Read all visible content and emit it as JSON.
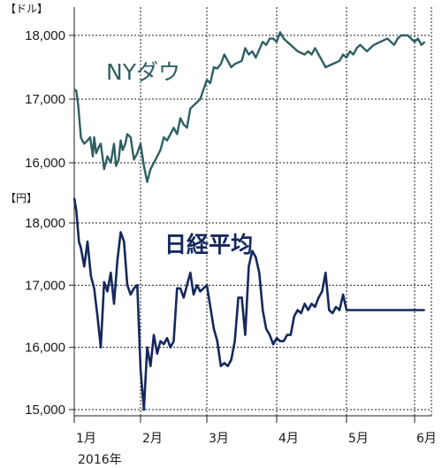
{
  "chart_data": [
    {
      "type": "line",
      "title": "NYダウ",
      "unit_label": "【ドル】",
      "color": "#2e5f63",
      "ylim": [
        15700,
        18200
      ],
      "yticks": [
        16000,
        17000,
        18000
      ],
      "ytick_labels": [
        "16,000",
        "17,000",
        "18,000"
      ],
      "xlim": [
        0,
        5.2
      ],
      "x": [
        0,
        0.03,
        0.06,
        0.1,
        0.12,
        0.15,
        0.2,
        0.24,
        0.28,
        0.3,
        0.33,
        0.37,
        0.4,
        0.45,
        0.5,
        0.55,
        0.6,
        0.63,
        0.67,
        0.7,
        0.73,
        0.77,
        0.8,
        0.85,
        0.9,
        0.95,
        1.0,
        1.05,
        1.1,
        1.15,
        1.2,
        1.25,
        1.3,
        1.35,
        1.4,
        1.45,
        1.5,
        1.55,
        1.6,
        1.65,
        1.7,
        1.75,
        1.8,
        1.85,
        1.9,
        2.0,
        2.05,
        2.1,
        2.15,
        2.2,
        2.25,
        2.3,
        2.35,
        2.4,
        2.5,
        2.55,
        2.6,
        2.65,
        2.7,
        2.8,
        2.85,
        2.9,
        2.95,
        3.0,
        3.05,
        3.1,
        3.15,
        3.2,
        3.25,
        3.3,
        3.4,
        3.45,
        3.5,
        3.55,
        3.6,
        3.65,
        3.7,
        3.8,
        3.9,
        3.95,
        4.0,
        4.05,
        4.1,
        4.15,
        4.2,
        4.3,
        4.4,
        4.5,
        4.6,
        4.7,
        4.75,
        4.8,
        4.9,
        5.0,
        5.05,
        5.1,
        5.15
      ],
      "y": [
        17150,
        17130,
        16900,
        16400,
        16350,
        16300,
        16350,
        16400,
        16100,
        16400,
        16150,
        16250,
        16300,
        15900,
        16100,
        16000,
        16300,
        15950,
        16050,
        16350,
        16200,
        16300,
        16450,
        16400,
        16050,
        16150,
        16300,
        15950,
        15700,
        15900,
        16000,
        16100,
        16200,
        16400,
        16350,
        16450,
        16550,
        16450,
        16700,
        16600,
        16550,
        16850,
        16900,
        16950,
        17000,
        17300,
        17250,
        17500,
        17480,
        17550,
        17700,
        17600,
        17500,
        17550,
        17600,
        17800,
        17700,
        17750,
        17650,
        17900,
        17850,
        17950,
        17950,
        17900,
        18050,
        17950,
        17900,
        17850,
        17800,
        17750,
        17700,
        17750,
        17700,
        17800,
        17700,
        17600,
        17500,
        17550,
        17600,
        17700,
        17650,
        17750,
        17700,
        17800,
        17850,
        17750,
        17850,
        17900,
        17950,
        17850,
        17950,
        18000,
        18000,
        17900,
        17950,
        17850,
        17900
      ],
      "series": [
        {
          "name": "NYダウ"
        }
      ]
    },
    {
      "type": "line",
      "title": "日経平均",
      "unit_label": "【円】",
      "color": "#14285c",
      "ylim": [
        15000,
        18500
      ],
      "yticks": [
        15000,
        16000,
        17000,
        18000
      ],
      "ytick_labels": [
        "15,000",
        "16,000",
        "17,000",
        "18,000"
      ],
      "xlim": [
        0,
        5.2
      ],
      "x": [
        0,
        0.03,
        0.07,
        0.1,
        0.15,
        0.2,
        0.25,
        0.3,
        0.35,
        0.4,
        0.45,
        0.5,
        0.55,
        0.6,
        0.65,
        0.7,
        0.75,
        0.8,
        0.85,
        0.9,
        0.95,
        1.0,
        1.05,
        1.1,
        1.15,
        1.2,
        1.25,
        1.3,
        1.35,
        1.4,
        1.45,
        1.5,
        1.55,
        1.6,
        1.65,
        1.7,
        1.75,
        1.8,
        1.85,
        1.9,
        2.0,
        2.1,
        2.15,
        2.2,
        2.25,
        2.3,
        2.35,
        2.4,
        2.45,
        2.5,
        2.55,
        2.6,
        2.65,
        2.7,
        2.75,
        2.8,
        2.85,
        2.9,
        2.95,
        3.0,
        3.05,
        3.1,
        3.15,
        3.2,
        3.25,
        3.3,
        3.35,
        3.4,
        3.45,
        3.5,
        3.55,
        3.6,
        3.65,
        3.7,
        3.75,
        3.8,
        3.85,
        3.9,
        3.95,
        4.0,
        4.05,
        4.1,
        4.15,
        4.2,
        4.25,
        4.3,
        4.35,
        4.4,
        4.45,
        4.5,
        4.55,
        4.6,
        4.65,
        4.7,
        4.75,
        4.8,
        4.85,
        4.9,
        4.95,
        5.0,
        5.05,
        5.1,
        5.15
      ],
      "y": [
        18400,
        18200,
        17700,
        17600,
        17300,
        17700,
        17150,
        16950,
        16500,
        16000,
        17050,
        16900,
        17200,
        16700,
        17400,
        17850,
        17700,
        17000,
        16850,
        16950,
        17000,
        15650,
        15000,
        16000,
        15700,
        16200,
        15900,
        16100,
        16050,
        16150,
        16000,
        16100,
        16950,
        16950,
        16800,
        17000,
        17200,
        16850,
        17000,
        16900,
        17000,
        16300,
        16100,
        15700,
        15750,
        15700,
        15800,
        16100,
        16800,
        16800,
        16200,
        17300,
        17550,
        17450,
        17200,
        16600,
        16300,
        16200,
        16050,
        16150,
        16100,
        16100,
        16200,
        16200,
        16500,
        16600,
        16550,
        16700,
        16600,
        16700,
        16650,
        16800,
        16900,
        17200,
        16600,
        16550,
        16650,
        16600,
        16850,
        16600,
        16600,
        16600,
        16600,
        16600,
        16600,
        16600,
        16600,
        16600,
        16600,
        16600,
        16600,
        16600,
        16600,
        16600,
        16600,
        16600,
        16600,
        16600,
        16600,
        16600,
        16600,
        16600,
        16600
      ],
      "series": [
        {
          "name": "日経平均"
        }
      ]
    }
  ],
  "xaxis": {
    "months": [
      "1月",
      "2月",
      "3月",
      "4月",
      "5月",
      "6月"
    ],
    "year_label": "2016年"
  }
}
